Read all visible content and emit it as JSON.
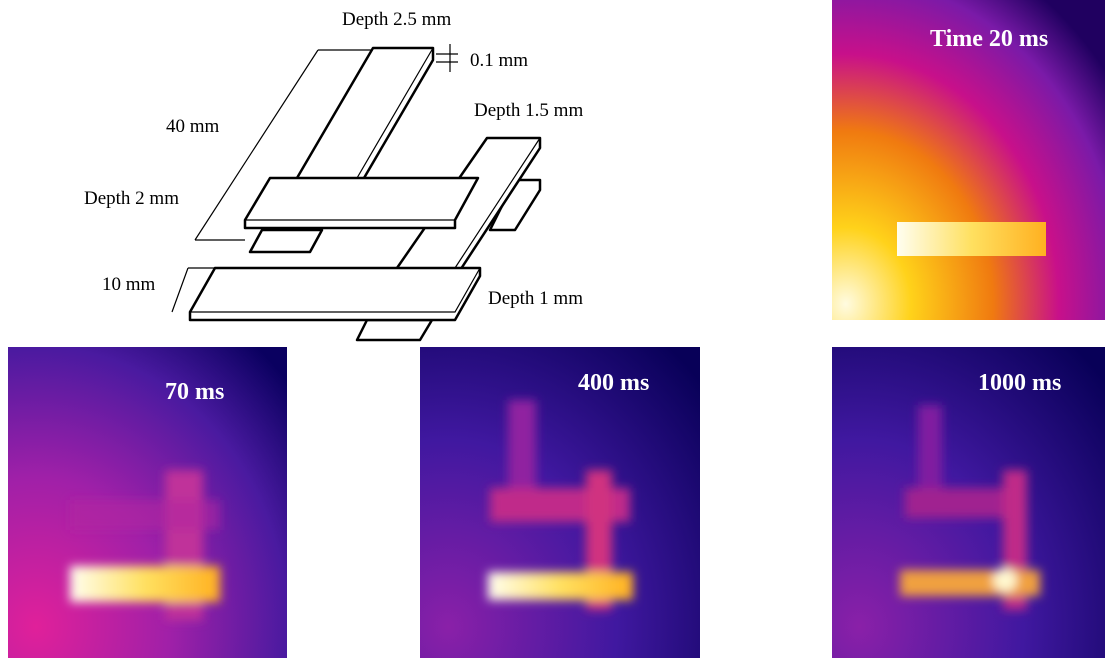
{
  "diagram": {
    "labels": [
      "Depth 2.5 mm",
      "0.1 mm",
      "40 mm",
      "Depth 1.5 mm",
      "Depth 2 mm",
      "10 mm",
      "Depth 1 mm"
    ]
  },
  "thermal_images": [
    {
      "label": "Time 20 ms"
    },
    {
      "label": "70 ms"
    },
    {
      "label": "400 ms"
    },
    {
      "label": "1000 ms"
    }
  ]
}
